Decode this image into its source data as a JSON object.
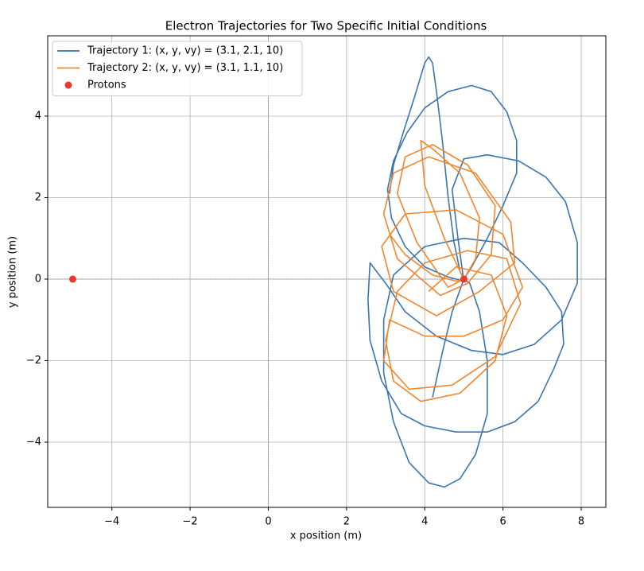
{
  "chart_data": {
    "type": "line",
    "title": "Electron Trajectories for Two Specific Initial Conditions",
    "x_label": "x position (m)",
    "y_label": "y position (m)",
    "xlim": [
      -5.64,
      8.63
    ],
    "ylim": [
      -5.6,
      5.97
    ],
    "xticks": [
      {
        "value": -4,
        "label": "−4"
      },
      {
        "value": -2,
        "label": "−2"
      },
      0,
      2,
      4,
      6,
      8
    ],
    "yticks": [
      {
        "value": -4,
        "label": "−4"
      },
      {
        "value": -2,
        "label": "−2"
      },
      0,
      2,
      4
    ],
    "grid": true,
    "hlines": [
      0
    ],
    "vlines": [
      0
    ],
    "legend": "upper left",
    "series": [
      {
        "name": "Trajectory 1: (x, y, vy) = (3.1, 2.1, 10)",
        "type": "line",
        "color": "#3a75af",
        "x": [
          3.1,
          3.2,
          3.45,
          3.75,
          4.0,
          4.1,
          4.2,
          4.3,
          4.45,
          4.6,
          4.75,
          4.9,
          5.0,
          5.2,
          5.6,
          6.0,
          6.35,
          6.35,
          6.1,
          5.7,
          5.2,
          4.6,
          4.0,
          3.55,
          3.2,
          3.05,
          3.15,
          3.5,
          4.0,
          4.6,
          5.0,
          4.85,
          4.7,
          5.0,
          5.6,
          6.4,
          7.1,
          7.6,
          7.9,
          7.9,
          7.5,
          6.8,
          6.0,
          5.2,
          4.3,
          3.5,
          3.0,
          2.6,
          2.55,
          2.6,
          2.9,
          3.4,
          4.0,
          4.8,
          5.6,
          6.3,
          6.9,
          7.3,
          7.55,
          7.5,
          7.1,
          6.5,
          5.9,
          5.0,
          4.0,
          3.2,
          2.95,
          2.95,
          3.2,
          3.6,
          4.1,
          4.5,
          4.9,
          5.3,
          5.6,
          5.6,
          5.4,
          5.15,
          5.0,
          4.7,
          4.45,
          4.2
        ],
        "values": [
          2.1,
          2.8,
          3.6,
          4.5,
          5.3,
          5.45,
          5.3,
          4.6,
          3.4,
          2.0,
          0.9,
          0.2,
          0.0,
          0.3,
          1.0,
          1.8,
          2.6,
          3.4,
          4.1,
          4.6,
          4.75,
          4.6,
          4.2,
          3.6,
          2.9,
          2.2,
          1.5,
          0.8,
          0.3,
          0.05,
          -0.05,
          1.0,
          2.2,
          2.95,
          3.05,
          2.9,
          2.5,
          1.9,
          0.9,
          -0.1,
          -1.0,
          -1.6,
          -1.85,
          -1.75,
          -1.4,
          -0.8,
          -0.1,
          0.4,
          -0.5,
          -1.5,
          -2.5,
          -3.3,
          -3.6,
          -3.75,
          -3.75,
          -3.5,
          -3.0,
          -2.2,
          -1.6,
          -0.8,
          -0.2,
          0.4,
          0.9,
          1.0,
          0.8,
          0.1,
          -1.0,
          -2.3,
          -3.5,
          -4.5,
          -5.0,
          -5.1,
          -4.9,
          -4.3,
          -3.3,
          -2.0,
          -0.8,
          -0.1,
          0.0,
          -0.8,
          -1.8,
          -2.9
        ]
      },
      {
        "name": "Trajectory 2: (x, y, vy) = (3.1, 1.1, 10)",
        "type": "line",
        "color": "#f0862e",
        "x": [
          3.1,
          3.5,
          4.2,
          4.8,
          5.0,
          4.5,
          4.0,
          3.9,
          4.2,
          4.9,
          5.4,
          5.3,
          5.0,
          4.6,
          3.8,
          3.3,
          3.5,
          4.2,
          5.1,
          5.8,
          5.7,
          5.1,
          4.4,
          3.3,
          2.95,
          3.2,
          4.1,
          5.3,
          6.2,
          6.3,
          5.4,
          4.3,
          3.2,
          2.9,
          3.5,
          4.8,
          6.0,
          6.5,
          6.0,
          5.0,
          4.0,
          3.1,
          2.95,
          3.6,
          4.7,
          5.8,
          6.45,
          6.1,
          5.1,
          4.0,
          3.3,
          3.0,
          3.2,
          3.9,
          4.9,
          5.8,
          6.1,
          5.7,
          4.8,
          4.1
        ],
        "values": [
          1.1,
          0.6,
          0.1,
          -0.05,
          0.0,
          1.0,
          2.3,
          3.4,
          3.2,
          2.6,
          1.5,
          0.5,
          0.0,
          -0.2,
          0.9,
          2.1,
          3.0,
          3.3,
          2.8,
          1.8,
          0.6,
          -0.1,
          -0.4,
          0.5,
          1.6,
          2.6,
          3.0,
          2.6,
          1.4,
          0.4,
          -0.3,
          -0.9,
          -0.3,
          0.8,
          1.6,
          1.7,
          1.1,
          -0.2,
          -1.0,
          -1.4,
          -1.4,
          -1.0,
          -2.0,
          -2.7,
          -2.6,
          -1.9,
          -0.6,
          0.5,
          0.7,
          0.4,
          -0.3,
          -1.5,
          -2.5,
          -3.0,
          -2.8,
          -2.0,
          -0.9,
          0.1,
          0.3,
          -0.3
        ]
      },
      {
        "name": "Protons",
        "type": "scatter",
        "color": "#e8392e",
        "x": [
          -5,
          5
        ],
        "values": [
          0,
          0
        ]
      }
    ]
  }
}
